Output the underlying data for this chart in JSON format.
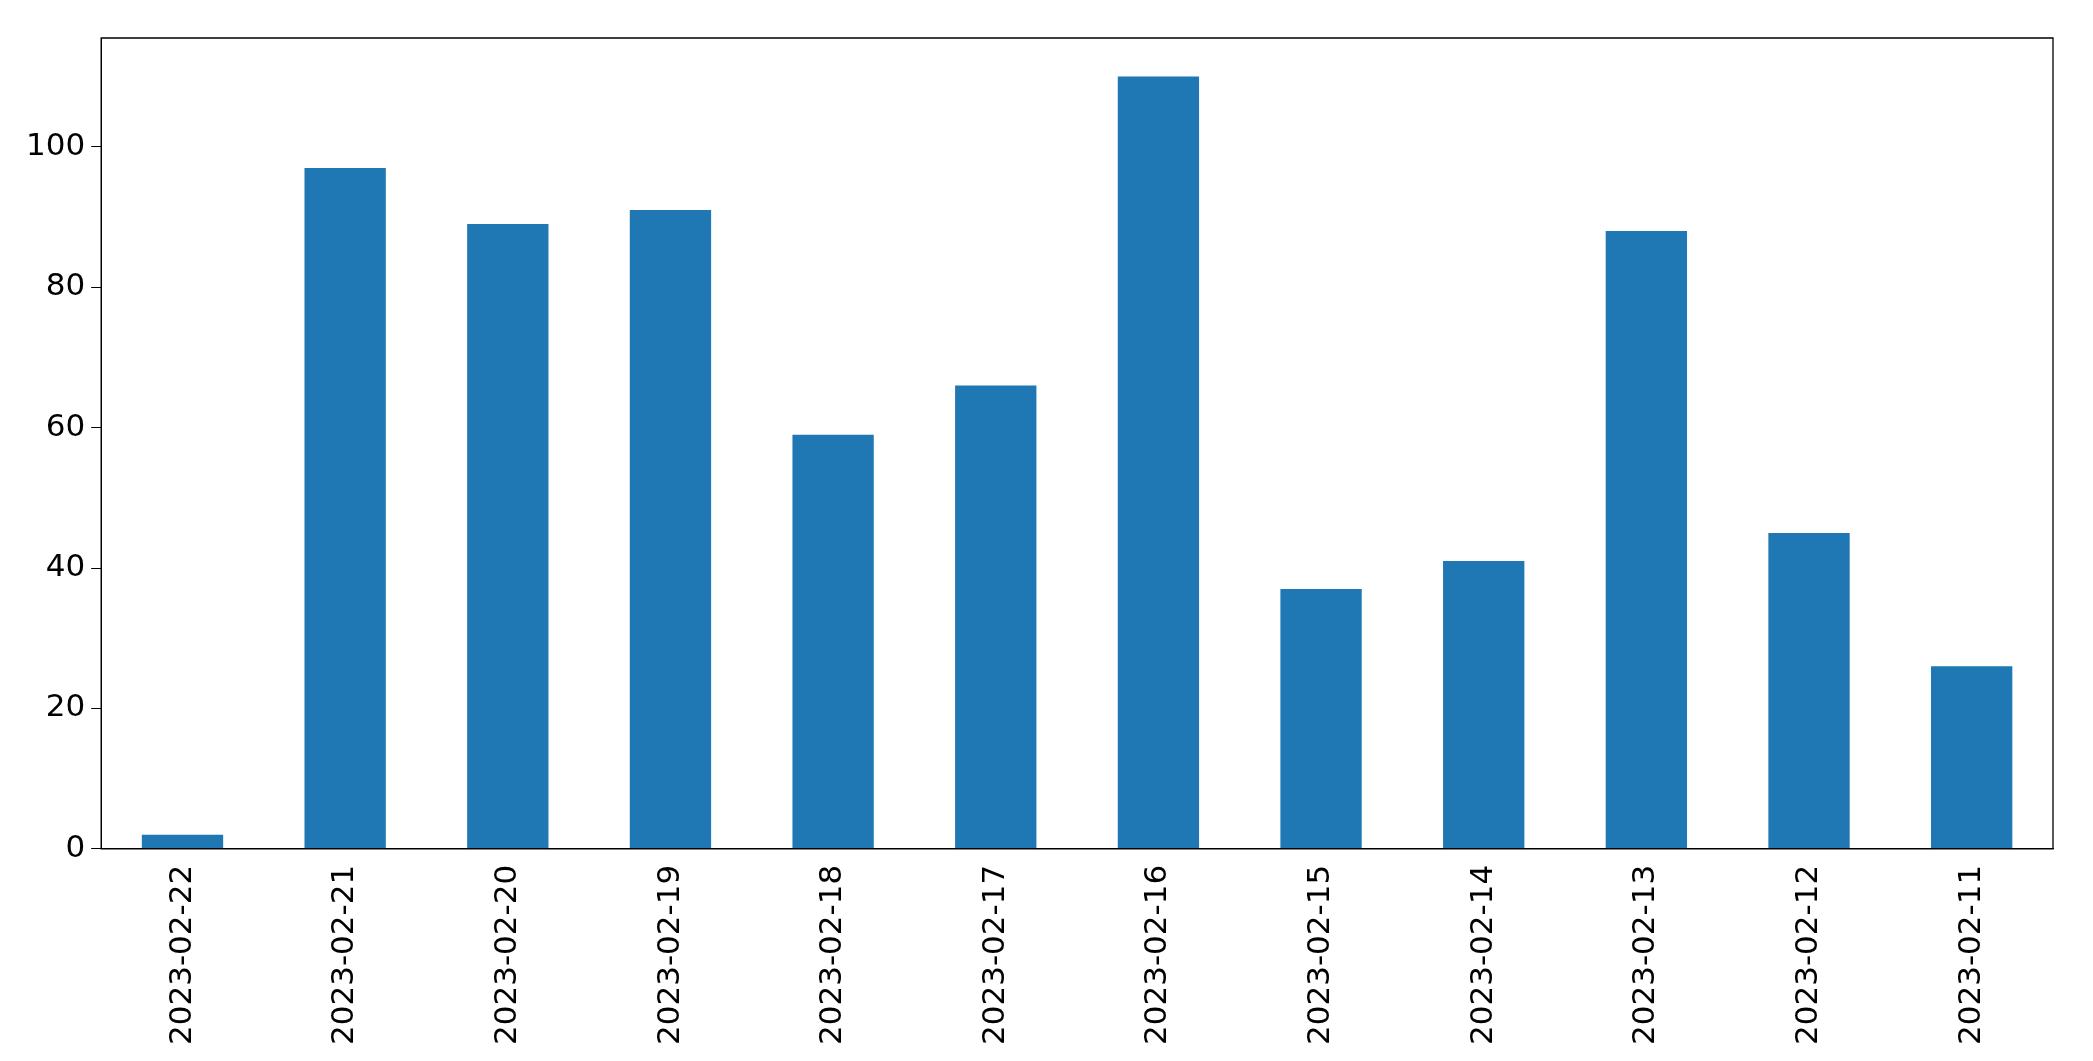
{
  "chart_data": {
    "type": "bar",
    "categories": [
      "2023-02-22",
      "2023-02-21",
      "2023-02-20",
      "2023-02-19",
      "2023-02-18",
      "2023-02-17",
      "2023-02-16",
      "2023-02-15",
      "2023-02-14",
      "2023-02-13",
      "2023-02-12",
      "2023-02-11"
    ],
    "values": [
      2,
      97,
      89,
      91,
      59,
      66,
      110,
      37,
      41,
      88,
      45,
      26
    ],
    "color": "#1f77b4",
    "ylim": [
      0,
      115.5
    ],
    "yticks": [
      0,
      20,
      40,
      60,
      80,
      100
    ],
    "grid": false,
    "legend": false
  }
}
